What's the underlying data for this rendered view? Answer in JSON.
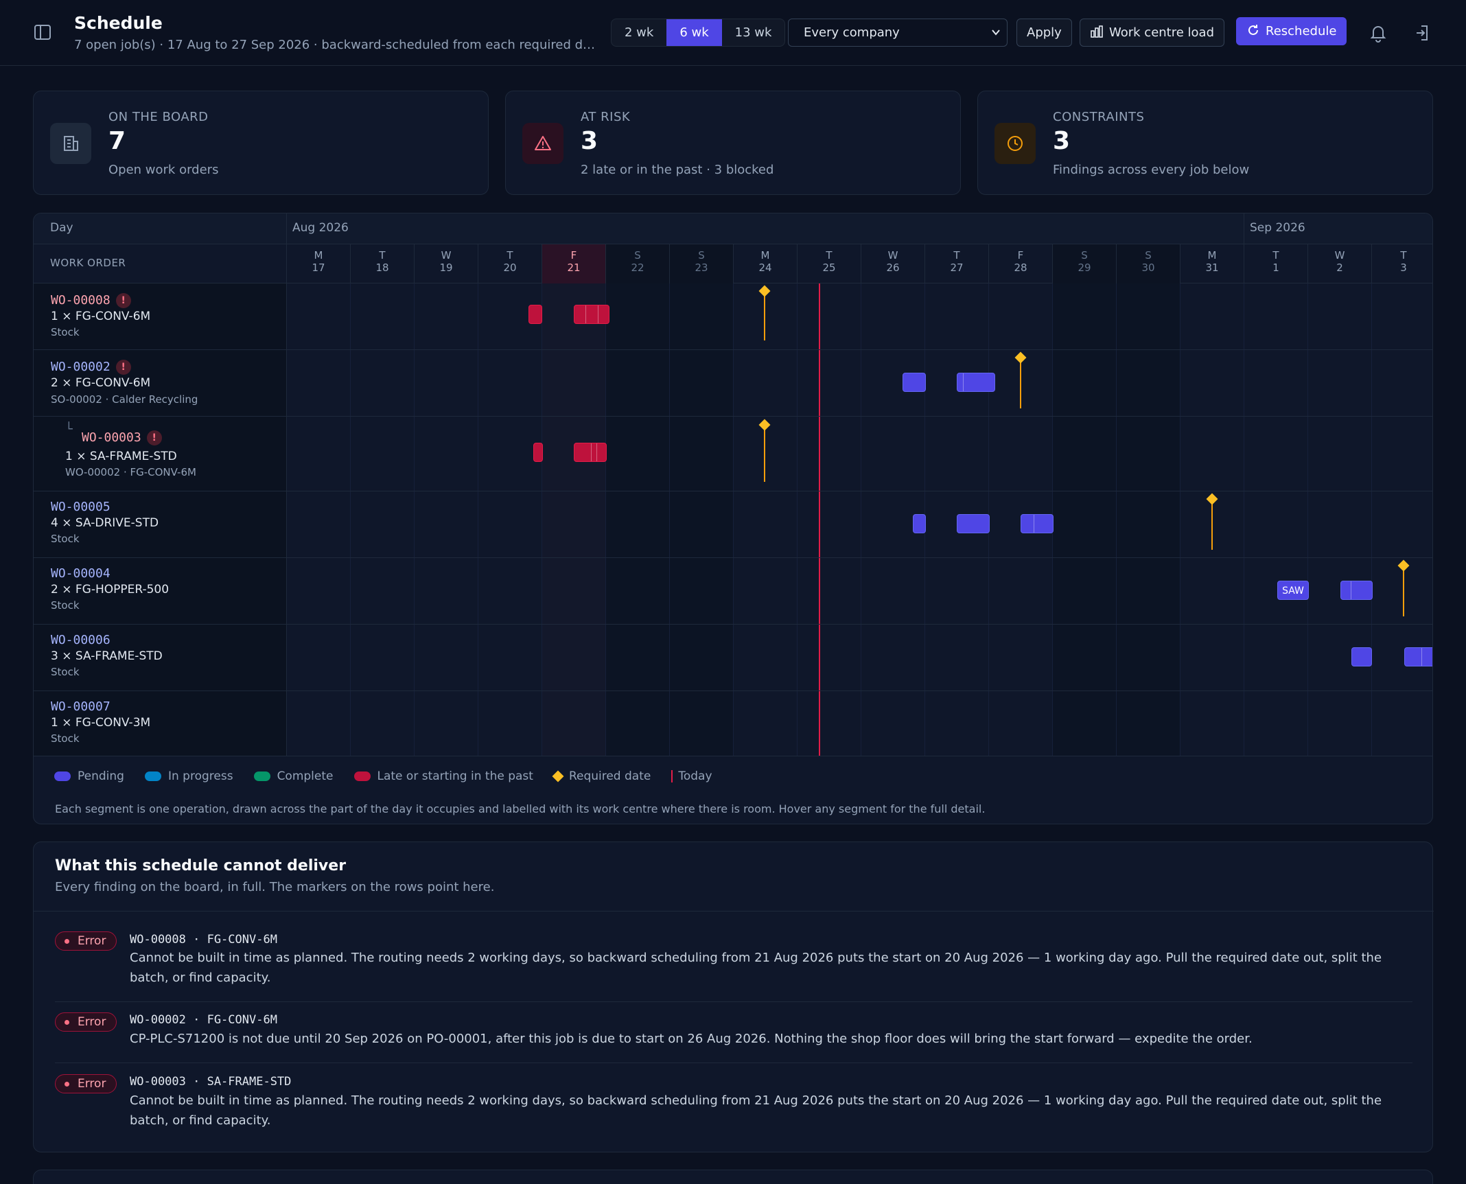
{
  "header": {
    "title": "Schedule",
    "subtitle": "7 open job(s) · 17 Aug to 27 Sep 2026 · backward-scheduled from each required d…",
    "ranges": [
      "2 wk",
      "6 wk",
      "13 wk"
    ],
    "active_range": "6 wk",
    "company_select": "Every company",
    "apply_label": "Apply",
    "load_label": "Work centre load",
    "reschedule_label": "Reschedule",
    "icons": [
      "sidebar-toggle-icon",
      "bar-chart-icon",
      "refresh-icon",
      "bell-icon",
      "sign-out-icon"
    ]
  },
  "kpis": [
    {
      "label": "On the board",
      "value": "7",
      "sub": "Open work orders",
      "icon": "building-icon",
      "color": "#64748b"
    },
    {
      "label": "At risk",
      "value": "3",
      "sub": "2 late or in the past · 3 blocked",
      "icon": "warning-icon",
      "color": "#fb7185"
    },
    {
      "label": "Constraints",
      "value": "3",
      "sub": "Findings across every job below",
      "icon": "clock-icon",
      "color": "#f59e0b"
    }
  ],
  "gantt": {
    "day_label": "Day",
    "work_order_label": "WORK ORDER",
    "months": [
      "Aug 2026",
      "Sep 2026"
    ],
    "days": [
      {
        "dow": "M",
        "num": "17"
      },
      {
        "dow": "T",
        "num": "18"
      },
      {
        "dow": "W",
        "num": "19"
      },
      {
        "dow": "T",
        "num": "20"
      },
      {
        "dow": "F",
        "num": "21"
      },
      {
        "dow": "S",
        "num": "22"
      },
      {
        "dow": "S",
        "num": "23"
      },
      {
        "dow": "M",
        "num": "24"
      },
      {
        "dow": "T",
        "num": "25"
      },
      {
        "dow": "W",
        "num": "26"
      },
      {
        "dow": "T",
        "num": "27"
      },
      {
        "dow": "F",
        "num": "28"
      },
      {
        "dow": "S",
        "num": "29"
      },
      {
        "dow": "S",
        "num": "30"
      },
      {
        "dow": "M",
        "num": "31"
      },
      {
        "dow": "T",
        "num": "1"
      },
      {
        "dow": "W",
        "num": "2"
      },
      {
        "dow": "T",
        "num": "3"
      }
    ],
    "rows": [
      {
        "wo": "WO-00008",
        "flag": "!",
        "qty": "1 × FG-CONV-6M",
        "src": "Stock"
      },
      {
        "wo": "WO-00002",
        "flag": "!",
        "qty": "2 × FG-CONV-6M",
        "src": "SO-00002 · Calder Recycling"
      },
      {
        "wo": "WO-00003",
        "flag": "!",
        "qty": "1 × SA-FRAME-STD",
        "src": "WO-00002 · FG-CONV-6M",
        "tree": "└"
      },
      {
        "wo": "WO-00005",
        "qty": "4 × SA-DRIVE-STD",
        "src": "Stock"
      },
      {
        "wo": "WO-00004",
        "qty": "2 × FG-HOPPER-500",
        "src": "Stock"
      },
      {
        "wo": "WO-00006",
        "qty": "3 × SA-FRAME-STD",
        "src": "Stock"
      },
      {
        "wo": "WO-00007",
        "qty": "1 × FG-CONV-3M",
        "src": "Stock"
      }
    ],
    "segment_label_saw": "SAW"
  },
  "legend": {
    "items": [
      {
        "label": "Pending",
        "color": "#4f46e5"
      },
      {
        "label": "In progress",
        "color": "#0284c7"
      },
      {
        "label": "Complete",
        "color": "#059669"
      },
      {
        "label": "Late or starting in the past",
        "color": "#be123c"
      }
    ],
    "required_label": "Required date",
    "today_label": "Today",
    "note": "Each segment is one operation, drawn across the part of the day it occupies and labelled with its work centre where there is room. Hover any segment for the full detail."
  },
  "findings": {
    "title": "What this schedule cannot deliver",
    "subtitle": "Every finding on the board, in full. The markers on the rows point here.",
    "items": [
      {
        "level": "Error",
        "ref": "WO-00008 · FG-CONV-6M",
        "msg": "Cannot be built in time as planned. The routing needs 2 working days, so backward scheduling from 21 Aug 2026 puts the start on 20 Aug 2026 — 1 working day ago. Pull the required date out, split the batch, or find capacity."
      },
      {
        "level": "Error",
        "ref": "WO-00002 · FG-CONV-6M",
        "msg": "CP-PLC-S71200 is not due until 20 Sep 2026 on PO-00001, after this job is due to start on 26 Aug 2026. Nothing the shop floor does will bring the start forward — expedite the order."
      },
      {
        "level": "Error",
        "ref": "WO-00003 · SA-FRAME-STD",
        "msg": "Cannot be built in time as planned. The routing needs 2 working days, so backward scheduling from 21 Aug 2026 puts the start on 20 Aug 2026 — 1 working day ago. Pull the required date out, split the batch, or find capacity."
      }
    ]
  }
}
